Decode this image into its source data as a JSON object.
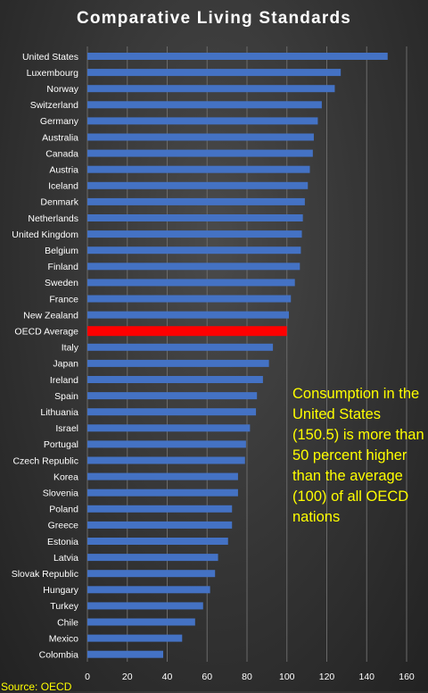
{
  "chart_data": {
    "type": "bar",
    "orientation": "horizontal",
    "title": "Comparative  Living  Standards",
    "xlabel": "",
    "ylabel": "",
    "xlim": [
      0,
      160
    ],
    "ticks": [
      0,
      20,
      40,
      60,
      80,
      100,
      120,
      140,
      160
    ],
    "grid": true,
    "categories": [
      "United States",
      "Luxembourg",
      "Norway",
      "Switzerland",
      "Germany",
      "Australia",
      "Canada",
      "Austria",
      "Iceland",
      "Denmark",
      "Netherlands",
      "United Kingdom",
      "Belgium",
      "Finland",
      "Sweden",
      "France",
      "New Zealand",
      "OECD Average",
      "Italy",
      "Japan",
      "Ireland",
      "Spain",
      "Lithuania",
      "Israel",
      "Portugal",
      "Czech Republic",
      "Korea",
      "Slovenia",
      "Poland",
      "Greece",
      "Estonia",
      "Latvia",
      "Slovak Republic",
      "Hungary",
      "Turkey",
      "Chile",
      "Mexico",
      "Colombia"
    ],
    "values": [
      150.5,
      127,
      124,
      117.5,
      115.5,
      113.5,
      113,
      111.5,
      110.5,
      109,
      108,
      107.5,
      107,
      106.5,
      104,
      102,
      101,
      100,
      93,
      91,
      88,
      85,
      84.5,
      81.5,
      79.5,
      79,
      75.5,
      75.5,
      72.5,
      72.5,
      70.5,
      65.5,
      64,
      61.5,
      58,
      54,
      47.5,
      38
    ],
    "colors": {
      "bar": "#4472C4",
      "highlight": "#FF0000"
    },
    "highlight_category": "OECD Average",
    "annotation": "Consumption in the United States (150.5) is more than 50 percent higher than the average (100) of all OECD nations",
    "source": "Source: OECD"
  }
}
